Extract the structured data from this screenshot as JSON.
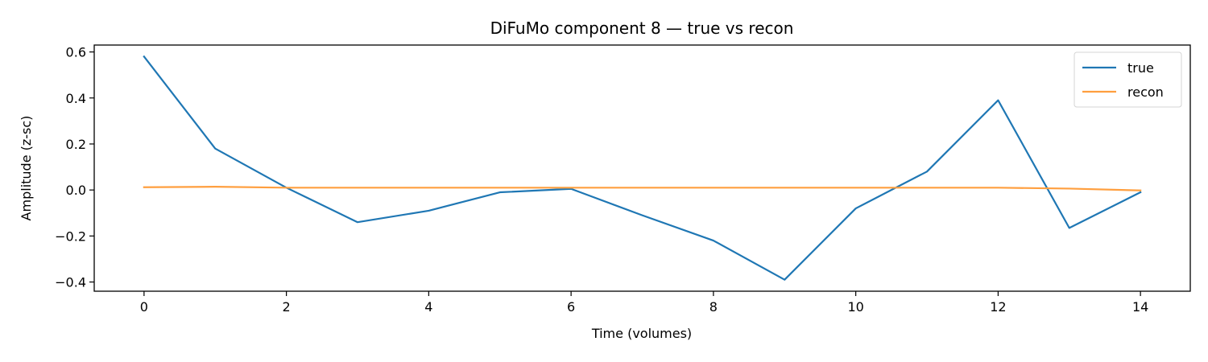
{
  "chart_data": {
    "type": "line",
    "title": "DiFuMo component 8 — true vs recon",
    "xlabel": "Time (volumes)",
    "ylabel": "Amplitude (z-sc)",
    "xlim": [
      -0.7,
      14.7
    ],
    "ylim": [
      -0.44,
      0.63
    ],
    "xticks": [
      0,
      2,
      4,
      6,
      8,
      10,
      12,
      14
    ],
    "yticks": [
      0.6,
      0.4,
      0.2,
      0.0,
      -0.2,
      -0.4
    ],
    "ytick_labels": [
      "0.6",
      "0.4",
      "0.2",
      "0.0",
      "−0.2",
      "−0.4"
    ],
    "grid": false,
    "legend_position": "top-right",
    "x": [
      0,
      1,
      2,
      3,
      4,
      5,
      6,
      7,
      8,
      9,
      10,
      11,
      12,
      13,
      14
    ],
    "series": [
      {
        "name": "true",
        "color": "#1f77b4",
        "values": [
          0.58,
          0.18,
          0.01,
          -0.14,
          -0.09,
          -0.01,
          0.005,
          -0.11,
          -0.22,
          -0.39,
          -0.08,
          0.08,
          0.39,
          -0.165,
          -0.01
        ]
      },
      {
        "name": "recon",
        "color": "#ff9f3f",
        "values": [
          0.012,
          0.014,
          0.01,
          0.01,
          0.01,
          0.01,
          0.01,
          0.01,
          0.01,
          0.01,
          0.01,
          0.01,
          0.01,
          0.006,
          -0.002
        ]
      }
    ]
  }
}
